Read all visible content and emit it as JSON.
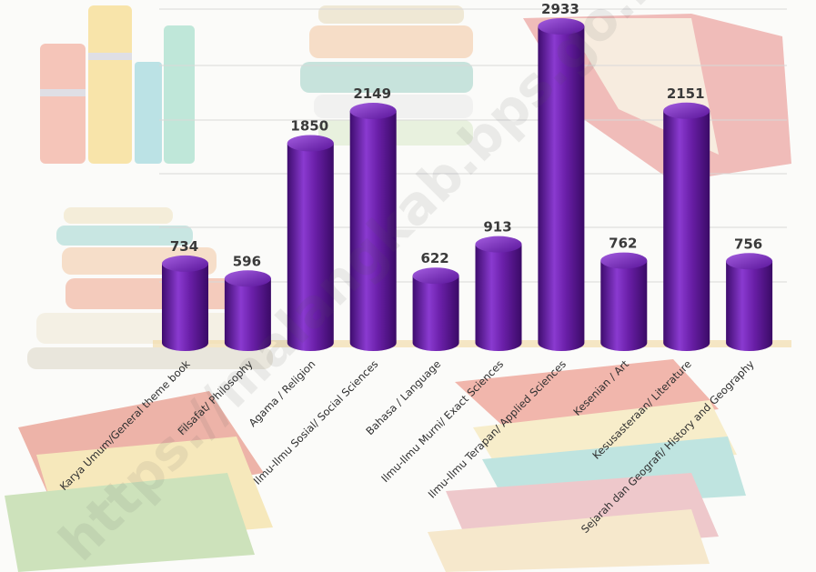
{
  "watermark": "https://malangkab.bps.go.id",
  "colors": {
    "bar": "#6a1fa8",
    "bar_dark": "#3e0c6e",
    "bar_light": "#9a4fd8",
    "bar_top": "#7f2fc4"
  },
  "chart_data": {
    "type": "bar",
    "title": "",
    "xlabel": "",
    "ylabel": "",
    "ylim": [
      0,
      3000
    ],
    "grid": true,
    "categories": [
      "Karya Umum/General theme book",
      "Filsafat/ Philosophy",
      "Agama / Religion",
      "Ilmu-Ilmu Sosial/ Social Sciences",
      "Bahasa / Language",
      "Ilmu-Ilmu Murni/ Exact Sciences",
      "Ilmu-Ilmu Terapan/ Applied Sciences",
      "Kesenian / Art",
      "Kesusasteraan/ Literature",
      "Sejarah dan Geografi/ History and Geography"
    ],
    "values": [
      734,
      596,
      1850,
      2149,
      622,
      913,
      2933,
      762,
      2151,
      756
    ],
    "value_labels": [
      "734",
      "596",
      "1850",
      "2149",
      "622",
      "913",
      "2933",
      "762",
      "2151",
      "756"
    ]
  }
}
